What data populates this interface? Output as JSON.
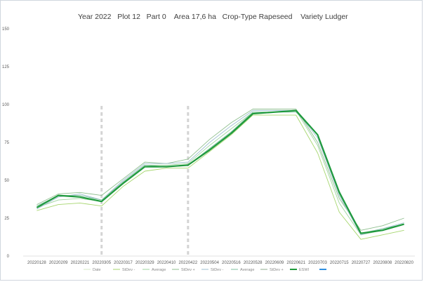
{
  "title": "Year 2022   Plot 12   Part 0    Area 17,6 ha   Crop-Type Rapeseed    Variety Ludger",
  "chart_data": {
    "type": "line",
    "ylim": [
      0,
      150
    ],
    "yticks": [
      0,
      25,
      50,
      75,
      100,
      125,
      150
    ],
    "grid": false,
    "categories": [
      "20220128",
      "20220209",
      "20220221",
      "20220305",
      "20220317",
      "20220329",
      "20220410",
      "20220422",
      "20220504",
      "20220516",
      "20220528",
      "20220609",
      "20220621",
      "20220703",
      "20220715",
      "20220727",
      "20220808",
      "20220820"
    ],
    "markers": [
      "20220305",
      "20220422"
    ],
    "series": [
      {
        "name": "StDev +",
        "color": "#8fbf8f",
        "width": 0.9,
        "values": [
          34,
          41,
          42,
          40,
          51,
          62,
          61,
          64,
          77,
          88,
          97,
          97,
          97,
          75,
          38,
          17,
          20,
          25
        ]
      },
      {
        "name": "Average",
        "color": "#9fd49f",
        "width": 0.9,
        "values": [
          32,
          37,
          38,
          36,
          49,
          60,
          60,
          61,
          73,
          84,
          95,
          95,
          96,
          73,
          35,
          14,
          17,
          21
        ]
      },
      {
        "name": "StDev -",
        "color": "#a6d66e",
        "width": 0.9,
        "values": [
          30,
          34,
          35,
          33,
          46,
          56,
          58,
          58,
          69,
          80,
          93,
          93,
          93,
          68,
          29,
          11,
          14,
          17
        ]
      },
      {
        "name": "StDev -",
        "color": "#9fbfd0",
        "width": 0.9,
        "values": [
          31,
          39,
          41,
          37,
          50,
          61,
          61,
          62,
          75,
          86,
          96,
          96,
          96,
          78,
          40,
          14,
          18,
          22
        ]
      },
      {
        "name": "Average",
        "color": "#7fbf9f",
        "width": 0.9,
        "values": [
          33,
          40,
          40,
          37,
          49,
          60,
          59,
          60,
          71,
          82,
          95,
          95,
          95,
          80,
          43,
          15,
          18,
          21
        ]
      },
      {
        "name": "ESWI",
        "color": "#1e9a3c",
        "width": 2.2,
        "values": [
          32,
          40,
          39,
          36,
          48,
          59,
          59,
          60,
          70,
          81,
          94,
          95,
          96,
          80,
          42,
          15,
          17,
          21
        ]
      }
    ],
    "legend": {
      "position": "bottom",
      "entries": [
        {
          "label": "Date",
          "color": "#d7e8c6"
        },
        {
          "label": "StDev -",
          "color": "#a6d66e"
        },
        {
          "label": "Average",
          "color": "#9fd49f"
        },
        {
          "label": "StDev +",
          "color": "#8fbf8f"
        },
        {
          "label": "StDev -",
          "color": "#9fbfd0"
        },
        {
          "label": "Average",
          "color": "#7fbf9f"
        },
        {
          "label": "StDev +",
          "color": "#8fae8f"
        },
        {
          "label": "ESWI",
          "color": "#1e9a3c"
        },
        {
          "label": "",
          "color": "#2f8fe0"
        }
      ]
    }
  }
}
